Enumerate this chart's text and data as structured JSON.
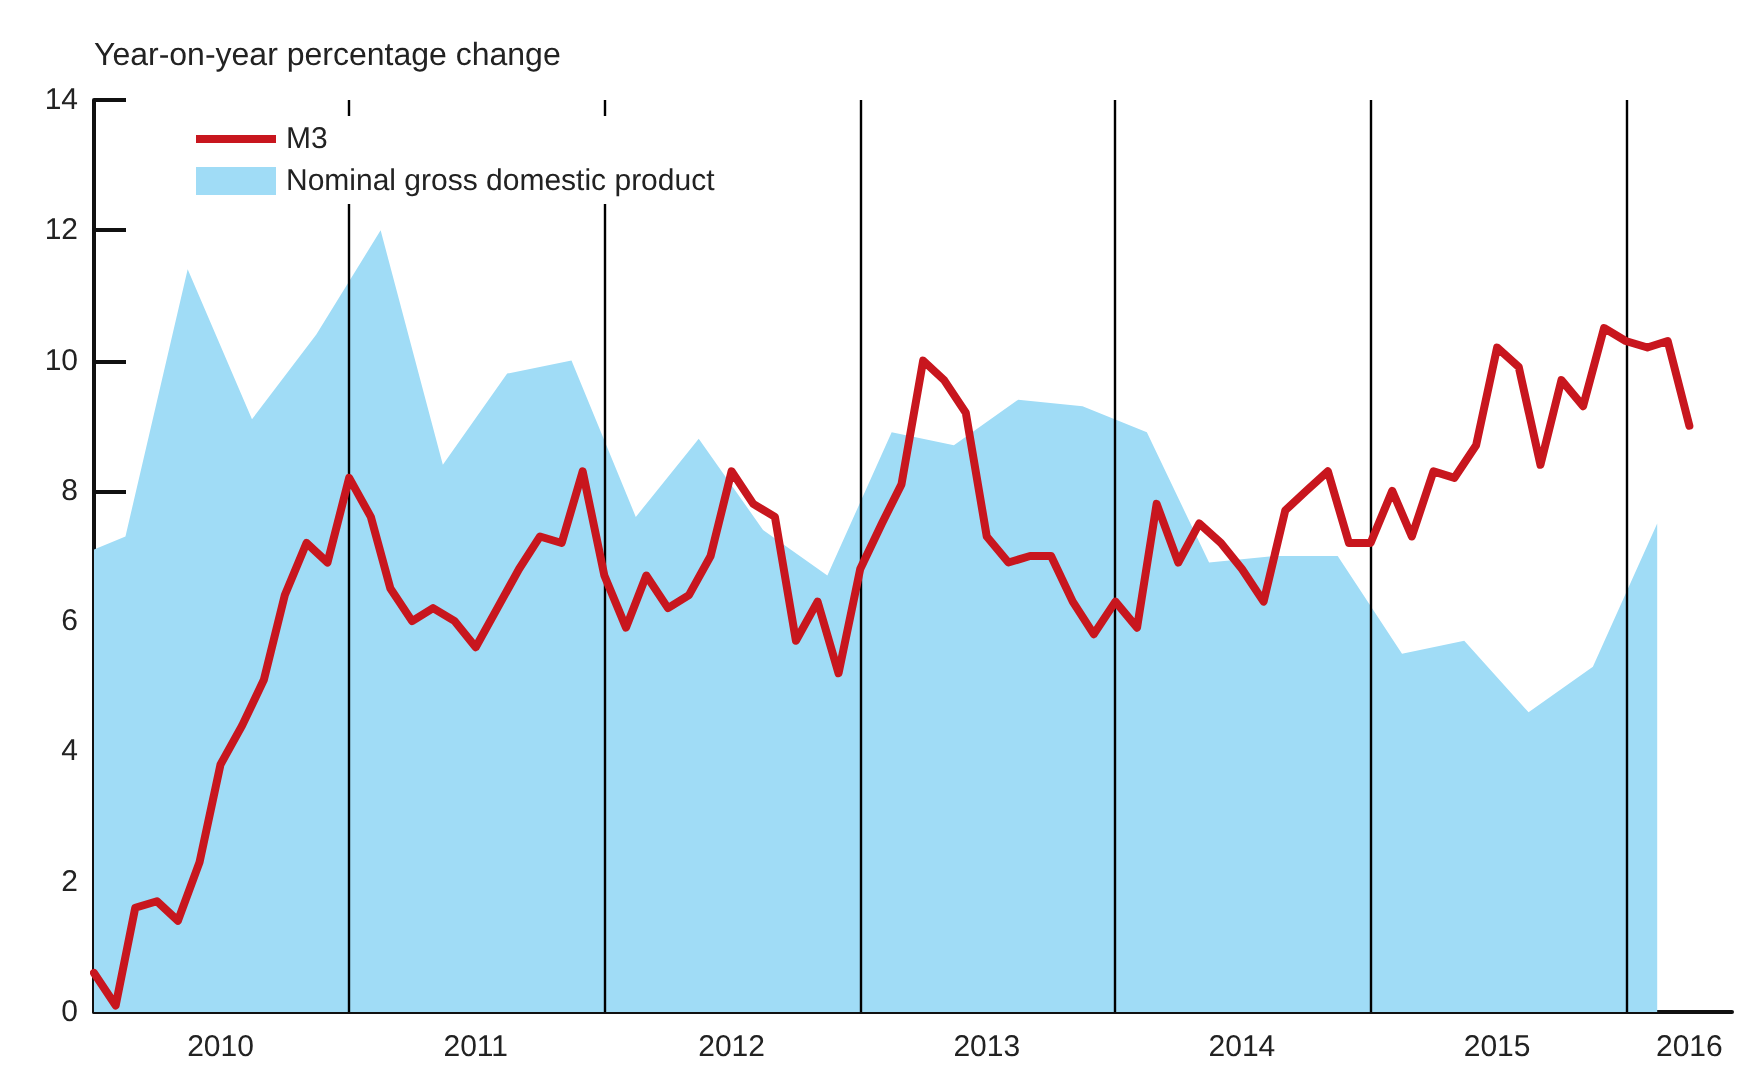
{
  "chart_data": {
    "type": "line",
    "ylabel": "Year-on-year percentage change",
    "xlim": [
      "2010-01",
      "2016-06"
    ],
    "xticks": [
      {
        "value": "2010-07",
        "label": "2010"
      },
      {
        "value": "2011-07",
        "label": "2011"
      },
      {
        "value": "2012-07",
        "label": "2012"
      },
      {
        "value": "2013-07",
        "label": "2013"
      },
      {
        "value": "2014-07",
        "label": "2014"
      },
      {
        "value": "2015-07",
        "label": "2015"
      },
      {
        "value": "2016-04",
        "label": "2016"
      }
    ],
    "ylim": [
      0,
      14
    ],
    "yticks": [
      0,
      2,
      4,
      6,
      8,
      10,
      12,
      14
    ],
    "grid": false,
    "legend": "top left",
    "marker": "none",
    "line_style": "solid",
    "ref_lines": [
      {
        "axis": "x",
        "value": "2011-01",
        "color": "#000000"
      },
      {
        "axis": "x",
        "value": "2012-01",
        "color": "#000000"
      },
      {
        "axis": "x",
        "value": "2013-01",
        "color": "#000000"
      },
      {
        "axis": "x",
        "value": "2014-01",
        "color": "#000000"
      },
      {
        "axis": "x",
        "value": "2015-01",
        "color": "#000000"
      },
      {
        "axis": "x",
        "value": "2016-01",
        "color": "#000000"
      }
    ],
    "series": [
      {
        "name": "Nominal gross domestic product",
        "type": "area",
        "color": "#a0dcf6",
        "x": [
          "2010-01",
          "2010-02-15",
          "2010-05-15",
          "2010-08-15",
          "2010-11-15",
          "2011-02-15",
          "2011-05-15",
          "2011-08-15",
          "2011-11-15",
          "2012-02-15",
          "2012-05-15",
          "2012-08-15",
          "2012-11-15",
          "2013-02-15",
          "2013-05-15",
          "2013-08-15",
          "2013-11-15",
          "2014-02-15",
          "2014-05-15",
          "2014-08-15",
          "2014-11-15",
          "2015-02-15",
          "2015-05-15",
          "2015-08-15",
          "2015-11-15",
          "2016-02-15"
        ],
        "values": [
          7.1,
          7.3,
          11.4,
          9.1,
          10.4,
          12.0,
          8.4,
          9.8,
          10.0,
          7.6,
          8.8,
          7.4,
          6.7,
          8.9,
          8.7,
          9.4,
          9.3,
          8.9,
          6.9,
          7.0,
          7.0,
          5.5,
          5.7,
          4.6,
          5.3,
          7.5
        ]
      },
      {
        "name": "M3",
        "color": "#c8161e",
        "x": [
          "2010-01",
          "2010-02",
          "2010-03",
          "2010-04",
          "2010-05",
          "2010-06",
          "2010-07",
          "2010-08",
          "2010-09",
          "2010-10",
          "2010-11",
          "2010-12",
          "2011-01",
          "2011-02",
          "2011-03",
          "2011-04",
          "2011-05",
          "2011-06",
          "2011-07",
          "2011-08",
          "2011-09",
          "2011-10",
          "2011-11",
          "2011-12",
          "2012-01",
          "2012-02",
          "2012-03",
          "2012-04",
          "2012-05",
          "2012-06",
          "2012-07",
          "2012-08",
          "2012-09",
          "2012-10",
          "2012-11",
          "2012-12",
          "2013-01",
          "2013-02",
          "2013-03",
          "2013-04",
          "2013-05",
          "2013-06",
          "2013-07",
          "2013-08",
          "2013-09",
          "2013-10",
          "2013-11",
          "2013-12",
          "2014-01",
          "2014-02",
          "2014-03",
          "2014-04",
          "2014-05",
          "2014-06",
          "2014-07",
          "2014-08",
          "2014-09",
          "2014-10",
          "2014-11",
          "2014-12",
          "2015-01",
          "2015-02",
          "2015-03",
          "2015-04",
          "2015-05",
          "2015-06",
          "2015-07",
          "2015-08",
          "2015-09",
          "2015-10",
          "2015-11",
          "2015-12",
          "2016-01",
          "2016-02",
          "2016-03",
          "2016-04"
        ],
        "values": [
          0.6,
          0.1,
          1.6,
          1.7,
          1.4,
          2.3,
          3.8,
          4.4,
          5.1,
          6.4,
          7.2,
          6.9,
          8.2,
          7.6,
          6.5,
          6.0,
          6.2,
          6.0,
          5.6,
          6.2,
          6.8,
          7.3,
          7.2,
          8.3,
          6.7,
          5.9,
          6.7,
          6.2,
          6.4,
          7.0,
          8.3,
          7.8,
          7.6,
          5.7,
          6.3,
          5.2,
          6.8,
          7.5,
          8.1,
          10.0,
          9.7,
          9.2,
          7.3,
          6.9,
          7.0,
          7.0,
          6.3,
          5.8,
          6.3,
          5.9,
          7.8,
          6.9,
          7.5,
          7.2,
          6.8,
          6.3,
          7.7,
          8.0,
          8.3,
          7.2,
          7.2,
          8.0,
          7.3,
          8.3,
          8.2,
          8.7,
          10.2,
          9.9,
          8.4,
          9.7,
          9.3,
          10.5,
          10.3,
          10.2,
          10.3,
          9.0
        ]
      }
    ]
  }
}
